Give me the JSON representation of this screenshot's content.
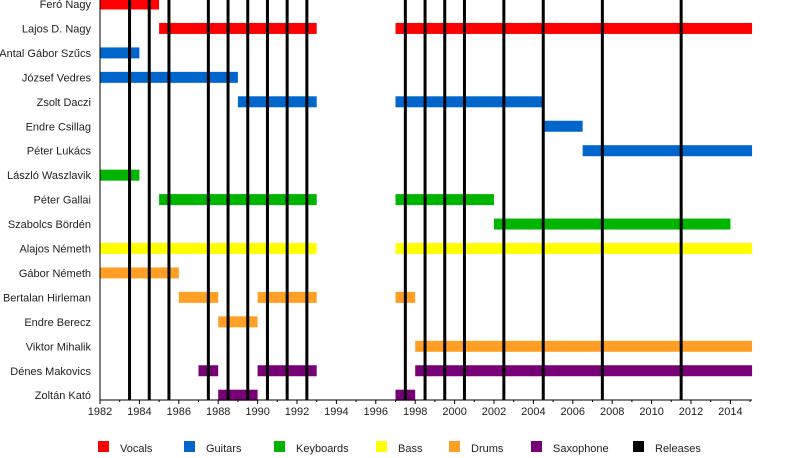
{
  "chart_data": {
    "type": "timeline",
    "title": "",
    "xlabel": "",
    "ylabel": "",
    "xlim": [
      1982,
      2015.1
    ],
    "x_ticks": [
      1982,
      1984,
      1986,
      1988,
      1990,
      1992,
      1994,
      1996,
      1998,
      2000,
      2002,
      2004,
      2006,
      2008,
      2010,
      2012,
      2014
    ],
    "roles": {
      "Vocals": "#ff0000",
      "Guitars": "#0066cc",
      "Keyboards": "#00b400",
      "Bass": "#ffff00",
      "Drums": "#ff9f26",
      "Saxophone": "#770077",
      "Releases": "#000000"
    },
    "legend": [
      "Vocals",
      "Guitars",
      "Keyboards",
      "Bass",
      "Drums",
      "Saxophone",
      "Releases"
    ],
    "legend_position": "bottom",
    "releases": [
      1983.5,
      1984.5,
      1985.5,
      1987.5,
      1988.5,
      1989.5,
      1990.5,
      1991.5,
      1992.5,
      1997.5,
      1998.5,
      1999.5,
      2000.5,
      2002.5,
      2004.5,
      2007.5,
      2011.5
    ],
    "members": [
      {
        "name": "Feró Nagy",
        "role": "Vocals",
        "periods": [
          [
            1982,
            1985
          ]
        ]
      },
      {
        "name": "Lajos D. Nagy",
        "role": "Vocals",
        "periods": [
          [
            1985,
            1993
          ],
          [
            1997,
            2015.1
          ]
        ]
      },
      {
        "name": "Antal Gábor Szűcs",
        "role": "Guitars",
        "periods": [
          [
            1982,
            1984
          ]
        ]
      },
      {
        "name": "József Vedres",
        "role": "Guitars",
        "periods": [
          [
            1982,
            1989
          ]
        ]
      },
      {
        "name": "Zsolt Daczi",
        "role": "Guitars",
        "periods": [
          [
            1989,
            1993
          ],
          [
            1997,
            2004.5
          ]
        ]
      },
      {
        "name": "Endre Csillag",
        "role": "Guitars",
        "periods": [
          [
            2004.5,
            2006.5
          ]
        ]
      },
      {
        "name": "Péter Lukács",
        "role": "Guitars",
        "periods": [
          [
            2006.5,
            2015.1
          ]
        ]
      },
      {
        "name": "László Waszlavik",
        "role": "Keyboards",
        "periods": [
          [
            1982,
            1984
          ]
        ]
      },
      {
        "name": "Péter Gallai",
        "role": "Keyboards",
        "periods": [
          [
            1985,
            1993
          ],
          [
            1997,
            2002
          ]
        ]
      },
      {
        "name": "Szabolcs Bördén",
        "role": "Keyboards",
        "periods": [
          [
            2002,
            2014
          ]
        ]
      },
      {
        "name": "Alajos Németh",
        "role": "Bass",
        "periods": [
          [
            1982,
            1993
          ],
          [
            1997,
            2015.1
          ]
        ]
      },
      {
        "name": "Gábor Németh",
        "role": "Drums",
        "periods": [
          [
            1982,
            1986
          ]
        ]
      },
      {
        "name": "Bertalan Hirleman",
        "role": "Drums",
        "periods": [
          [
            1986,
            1988
          ],
          [
            1990,
            1993
          ],
          [
            1997,
            1998
          ]
        ]
      },
      {
        "name": "Endre Berecz",
        "role": "Drums",
        "periods": [
          [
            1988,
            1990
          ]
        ]
      },
      {
        "name": "Viktor Mihalik",
        "role": "Drums",
        "periods": [
          [
            1998,
            2015.1
          ]
        ]
      },
      {
        "name": "Dénes Makovics",
        "role": "Saxophone",
        "periods": [
          [
            1987,
            1988
          ],
          [
            1990,
            1993
          ],
          [
            1998,
            2015.1
          ]
        ]
      },
      {
        "name": "Zoltán Kató",
        "role": "Saxophone",
        "periods": [
          [
            1988,
            1990
          ],
          [
            1997,
            1998
          ]
        ]
      }
    ]
  }
}
